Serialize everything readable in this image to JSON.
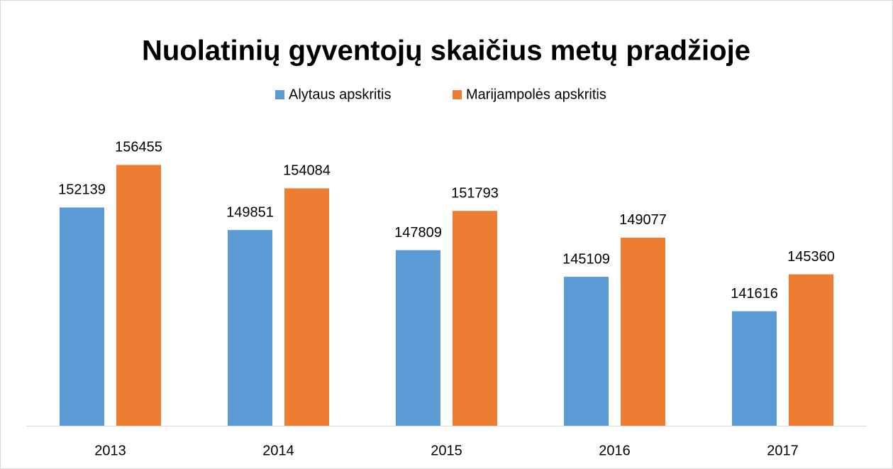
{
  "chart_data": {
    "type": "bar",
    "title": "Nuolatinių gyventojų skaičius metų pradžioje",
    "categories": [
      "2013",
      "2014",
      "2015",
      "2016",
      "2017"
    ],
    "series": [
      {
        "name": "Alytaus apskritis",
        "color": "#5b9bd5",
        "values": [
          152139,
          149851,
          147809,
          145109,
          141616
        ]
      },
      {
        "name": "Marijampolės apskritis",
        "color": "#ed7d31",
        "values": [
          156455,
          154084,
          151793,
          149077,
          145360
        ]
      }
    ],
    "ylim": [
      130000,
      158000
    ],
    "legend": "top"
  }
}
